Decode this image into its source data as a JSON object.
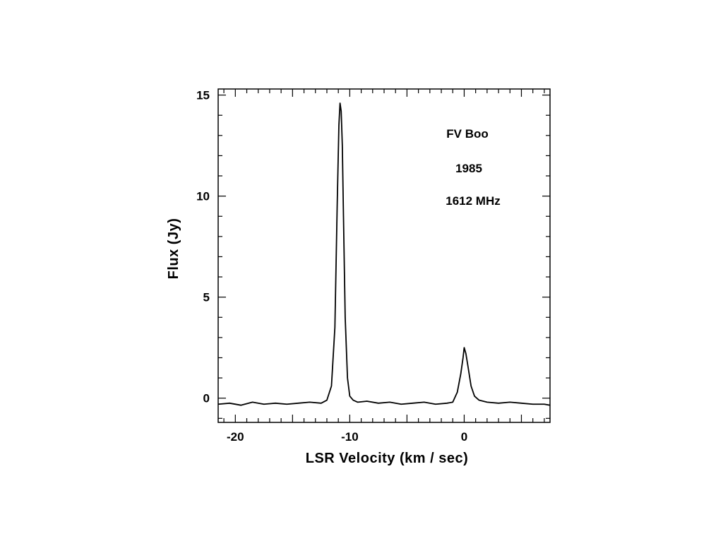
{
  "chart_data": {
    "type": "line",
    "title": "",
    "xlabel": "LSR  Velocity  (km / sec)",
    "ylabel": "Flux  (Jy)",
    "xlim": [
      -21.5,
      7.5
    ],
    "ylim": [
      -1.2,
      15.3
    ],
    "x_ticks": [
      -20,
      -10,
      0
    ],
    "x_tick_labels": [
      "-20",
      "-10",
      "0"
    ],
    "y_ticks": [
      0,
      5,
      10,
      15
    ],
    "y_tick_labels": [
      "0",
      "5",
      "10",
      "15"
    ],
    "x_minor_step": 1,
    "y_minor_step": 1,
    "grid": false,
    "legend": "none",
    "annotations": [
      "FV  Boo",
      "1985",
      "1612 MHz"
    ],
    "series": [
      {
        "x": [
          -21.5,
          -20.5,
          -19.5,
          -18.5,
          -17.5,
          -16.5,
          -15.5,
          -14.5,
          -13.5,
          -12.5,
          -12.0,
          -11.6,
          -11.3,
          -11.1,
          -10.95,
          -10.85,
          -10.75,
          -10.65,
          -10.55,
          -10.4,
          -10.2,
          -10.0,
          -9.7,
          -9.3,
          -8.5,
          -7.5,
          -6.5,
          -5.5,
          -4.5,
          -3.5,
          -2.5,
          -1.5,
          -1.0,
          -0.6,
          -0.3,
          -0.1,
          0.0,
          0.15,
          0.35,
          0.6,
          0.9,
          1.3,
          2.0,
          3.0,
          4.0,
          5.0,
          6.0,
          7.0,
          7.5
        ],
        "y": [
          -0.3,
          -0.25,
          -0.35,
          -0.2,
          -0.3,
          -0.25,
          -0.3,
          -0.25,
          -0.2,
          -0.25,
          -0.1,
          0.6,
          3.5,
          9.5,
          13.5,
          14.6,
          14.2,
          12.5,
          9.0,
          4.0,
          1.0,
          0.1,
          -0.1,
          -0.2,
          -0.15,
          -0.25,
          -0.2,
          -0.3,
          -0.25,
          -0.2,
          -0.3,
          -0.25,
          -0.2,
          0.3,
          1.2,
          2.0,
          2.5,
          2.2,
          1.5,
          0.6,
          0.1,
          -0.1,
          -0.2,
          -0.25,
          -0.2,
          -0.25,
          -0.3,
          -0.3,
          -0.35
        ]
      }
    ]
  }
}
